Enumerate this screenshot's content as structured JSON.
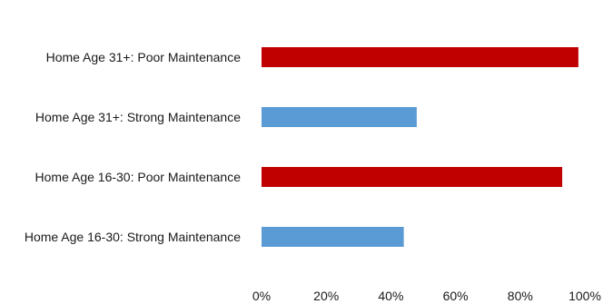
{
  "chart_data": {
    "type": "bar",
    "orientation": "horizontal",
    "categories": [
      "Home Age 31+:  Poor Maintenance",
      "Home Age 31+:  Strong Maintenance",
      "Home Age 16-30:  Poor Maintenance",
      "Home Age 16-30:  Strong Maintenance"
    ],
    "values": [
      98,
      48,
      93,
      44
    ],
    "bar_colors": [
      "#c00000",
      "#5b9bd5",
      "#c00000",
      "#5b9bd5"
    ],
    "x_ticks": [
      "0%",
      "20%",
      "40%",
      "60%",
      "80%",
      "100%"
    ],
    "xlim": [
      0,
      100
    ],
    "grid": false,
    "legend": "none"
  }
}
